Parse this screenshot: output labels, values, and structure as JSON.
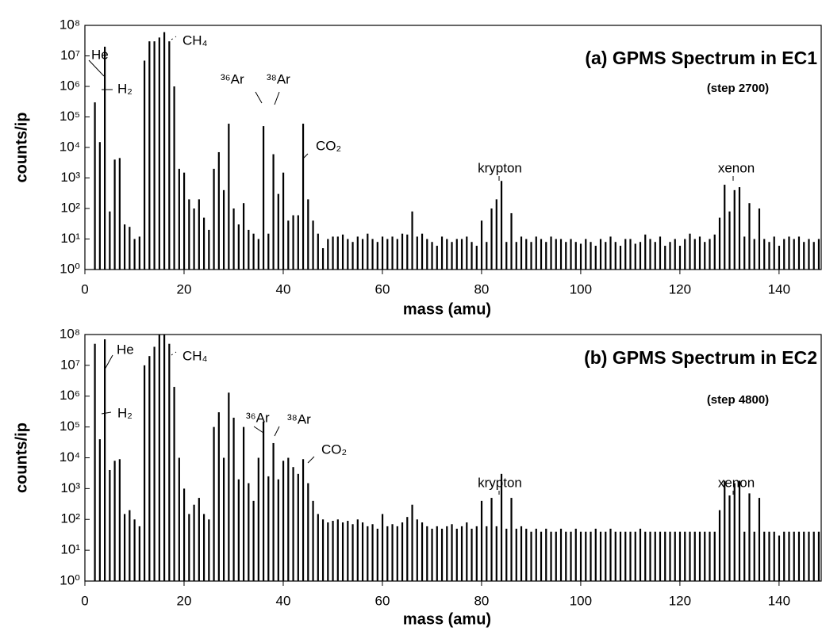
{
  "chart_data": [
    {
      "type": "bar",
      "title": "(a) GPMS Spectrum in EC1",
      "subtitle": "(step 2700)",
      "xlabel": "mass (amu)",
      "ylabel": "counts/ip",
      "color": "#000000",
      "log_y": true,
      "annotations": [
        "He",
        "H₂",
        "CH₄",
        "³⁶Ar",
        "³⁸Ar",
        "CO₂",
        "krypton",
        "xenon"
      ],
      "xlim": [
        0,
        148.5
      ],
      "xticks": [
        0,
        20,
        40,
        60,
        80,
        100,
        120,
        140
      ],
      "ylim": [
        1,
        100000000.0
      ],
      "yticks": [
        {
          "value": 1,
          "label": "10⁰"
        },
        {
          "value": 10,
          "label": "10¹"
        },
        {
          "value": 100,
          "label": "10²"
        },
        {
          "value": 1000,
          "label": "10³"
        },
        {
          "value": 10000,
          "label": "10⁴"
        },
        {
          "value": 100000,
          "label": "10⁵"
        },
        {
          "value": 1000000,
          "label": "10⁶"
        },
        {
          "value": 10000000,
          "label": "10⁷"
        },
        {
          "value": 100000000,
          "label": "10⁸"
        }
      ],
      "x": [
        2,
        3,
        4,
        5,
        6,
        7,
        8,
        9,
        10,
        11,
        12,
        13,
        14,
        15,
        16,
        17,
        18,
        19,
        20,
        21,
        22,
        23,
        24,
        25,
        26,
        27,
        28,
        29,
        30,
        31,
        32,
        33,
        34,
        35,
        36,
        37,
        38,
        39,
        40,
        41,
        42,
        43,
        44,
        45,
        46,
        47,
        48,
        49,
        50,
        51,
        52,
        53,
        54,
        55,
        56,
        57,
        58,
        59,
        60,
        61,
        62,
        63,
        64,
        65,
        66,
        67,
        68,
        69,
        70,
        71,
        72,
        73,
        74,
        75,
        76,
        77,
        78,
        79,
        80,
        81,
        82,
        83,
        84,
        85,
        86,
        87,
        88,
        89,
        90,
        91,
        92,
        93,
        94,
        95,
        96,
        97,
        98,
        99,
        100,
        101,
        102,
        103,
        104,
        105,
        106,
        107,
        108,
        109,
        110,
        111,
        112,
        113,
        114,
        115,
        116,
        117,
        118,
        119,
        120,
        121,
        122,
        123,
        124,
        125,
        126,
        127,
        128,
        129,
        130,
        131,
        132,
        133,
        134,
        135,
        136,
        137,
        138,
        139,
        140,
        141,
        142,
        143,
        144,
        145,
        146,
        147,
        148
      ],
      "values": [
        300000.0,
        15000.0,
        20000000.0,
        80,
        4000.0,
        4500.0,
        30,
        25,
        10,
        12,
        7000000.0,
        30000000.0,
        30000000.0,
        40000000.0,
        60000000.0,
        30000000.0,
        1000000.0,
        2000.0,
        1500.0,
        200,
        100,
        200,
        50,
        20,
        2000.0,
        7000.0,
        400,
        60000.0,
        100,
        30,
        150,
        20,
        15,
        10,
        50000.0,
        15,
        6000.0,
        300,
        1500,
        40,
        60,
        60,
        60000.0,
        200,
        40,
        15,
        5,
        10,
        12,
        12,
        14,
        10,
        8,
        12,
        10,
        15,
        10,
        8,
        12,
        10,
        12,
        10,
        15,
        14,
        80,
        12,
        15,
        10,
        8,
        6,
        12,
        10,
        8,
        10,
        10,
        12,
        8,
        6,
        40,
        8,
        100,
        200,
        800,
        8,
        70,
        8,
        12,
        10,
        8,
        12,
        10,
        8,
        12,
        10,
        10,
        8,
        10,
        8,
        7,
        10,
        8,
        6,
        10,
        8,
        12,
        8,
        6,
        10,
        10,
        7,
        8,
        14,
        10,
        8,
        12,
        6,
        8,
        10,
        6,
        10,
        15,
        10,
        12,
        8,
        10,
        14,
        50,
        600,
        80,
        400,
        500,
        12,
        150,
        10,
        100,
        10,
        8,
        12,
        6,
        10,
        12,
        10,
        12,
        8,
        10,
        8,
        10
      ]
    },
    {
      "type": "bar",
      "title": "(b) GPMS Spectrum in EC2",
      "subtitle": "(step 4800)",
      "xlabel": "mass (amu)",
      "ylabel": "counts/ip",
      "color": "#000000",
      "log_y": true,
      "annotations": [
        "He",
        "H₂",
        "CH₄",
        "³⁶Ar",
        "³⁸Ar",
        "CO₂",
        "krypton",
        "xenon"
      ],
      "xlim": [
        0,
        148.5
      ],
      "xticks": [
        0,
        20,
        40,
        60,
        80,
        100,
        120,
        140
      ],
      "ylim": [
        1,
        100000000.0
      ],
      "yticks": [
        {
          "value": 1,
          "label": "10⁰"
        },
        {
          "value": 10,
          "label": "10¹"
        },
        {
          "value": 100,
          "label": "10²"
        },
        {
          "value": 1000,
          "label": "10³"
        },
        {
          "value": 10000,
          "label": "10⁴"
        },
        {
          "value": 100000,
          "label": "10⁵"
        },
        {
          "value": 1000000,
          "label": "10⁶"
        },
        {
          "value": 10000000,
          "label": "10⁷"
        },
        {
          "value": 100000000,
          "label": "10⁸"
        }
      ],
      "x": [
        2,
        3,
        4,
        5,
        6,
        7,
        8,
        9,
        10,
        11,
        12,
        13,
        14,
        15,
        16,
        17,
        18,
        19,
        20,
        21,
        22,
        23,
        24,
        25,
        26,
        27,
        28,
        29,
        30,
        31,
        32,
        33,
        34,
        35,
        36,
        37,
        38,
        39,
        40,
        41,
        42,
        43,
        44,
        45,
        46,
        47,
        48,
        49,
        50,
        51,
        52,
        53,
        54,
        55,
        56,
        57,
        58,
        59,
        60,
        61,
        62,
        63,
        64,
        65,
        66,
        67,
        68,
        69,
        70,
        71,
        72,
        73,
        74,
        75,
        76,
        77,
        78,
        79,
        80,
        81,
        82,
        83,
        84,
        85,
        86,
        87,
        88,
        89,
        90,
        91,
        92,
        93,
        94,
        95,
        96,
        97,
        98,
        99,
        100,
        101,
        102,
        103,
        104,
        105,
        106,
        107,
        108,
        109,
        110,
        111,
        112,
        113,
        114,
        115,
        116,
        117,
        118,
        119,
        120,
        121,
        122,
        123,
        124,
        125,
        126,
        127,
        128,
        129,
        130,
        131,
        132,
        133,
        134,
        135,
        136,
        137,
        138,
        139,
        140,
        141,
        142,
        143,
        144,
        145,
        146,
        147,
        148
      ],
      "values": [
        50000000.0,
        40000.0,
        70000000.0,
        4000.0,
        8000.0,
        9000.0,
        150,
        200,
        100,
        60,
        10000000.0,
        20000000.0,
        40000000.0,
        100000000.0,
        100000000.0,
        50000000.0,
        2000000.0,
        10000.0,
        1000.0,
        150,
        300,
        500,
        150,
        100,
        100000.0,
        300000.0,
        10000.0,
        1300000.0,
        200000.0,
        2000,
        100000.0,
        1500,
        400,
        10000.0,
        150000.0,
        2500,
        30000.0,
        2000,
        8000,
        10000.0,
        5000,
        3000,
        9000,
        1500,
        400,
        150,
        100,
        80,
        90,
        100,
        80,
        90,
        70,
        100,
        80,
        60,
        70,
        50,
        150,
        60,
        70,
        60,
        80,
        120,
        300,
        100,
        80,
        60,
        50,
        60,
        50,
        60,
        70,
        50,
        60,
        80,
        50,
        60,
        400,
        60,
        500,
        60,
        3000,
        50,
        500,
        50,
        60,
        50,
        40,
        50,
        40,
        50,
        40,
        40,
        50,
        40,
        40,
        50,
        40,
        40,
        40,
        50,
        40,
        40,
        50,
        40,
        40,
        40,
        40,
        40,
        50,
        40,
        40,
        40,
        40,
        40,
        40,
        40,
        40,
        40,
        40,
        40,
        40,
        40,
        40,
        40,
        200,
        1800,
        600,
        1500,
        1800,
        40,
        700,
        40,
        500,
        40,
        40,
        40,
        30,
        40,
        40,
        40,
        40,
        40,
        40,
        40,
        40
      ]
    }
  ]
}
